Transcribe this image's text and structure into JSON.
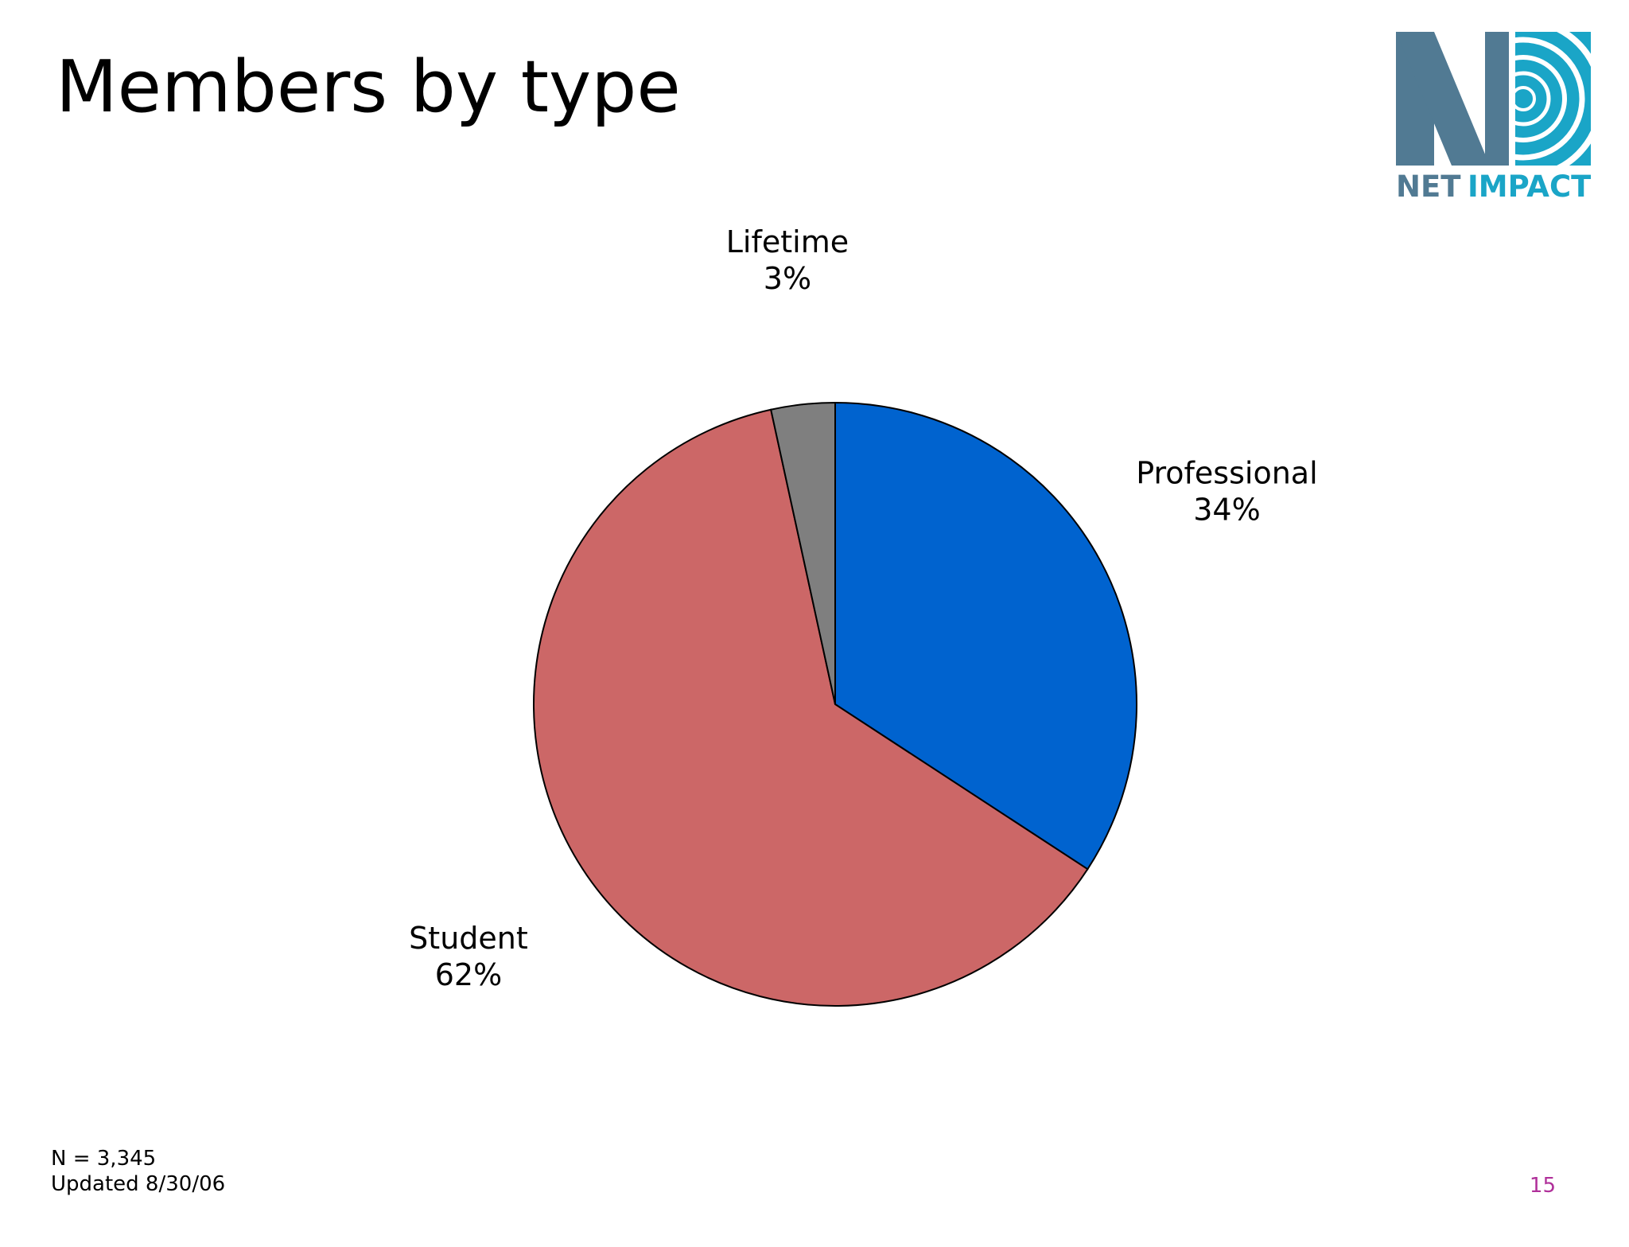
{
  "slide": {
    "title": "Members by type",
    "page_number": "15"
  },
  "footnote": {
    "sample_size": "N = 3,345",
    "updated": "Updated 8/30/06"
  },
  "logo": {
    "wordmark_left": "NET",
    "wordmark_right": "IMPACT",
    "colors": {
      "dark": "#517A93",
      "light": "#1AA5C7"
    }
  },
  "chart_data": {
    "type": "pie",
    "title": "",
    "start_angle": "12 o'clock",
    "direction": "clockwise",
    "slices": [
      {
        "name": "Professional",
        "label": "34%",
        "value": 34,
        "color": "#0063CF"
      },
      {
        "name": "Student",
        "label": "62%",
        "value": 62,
        "color": "#CC6767"
      },
      {
        "name": "Lifetime",
        "label": "3%",
        "value": 3.4,
        "color": "#7F7F7F"
      }
    ]
  }
}
